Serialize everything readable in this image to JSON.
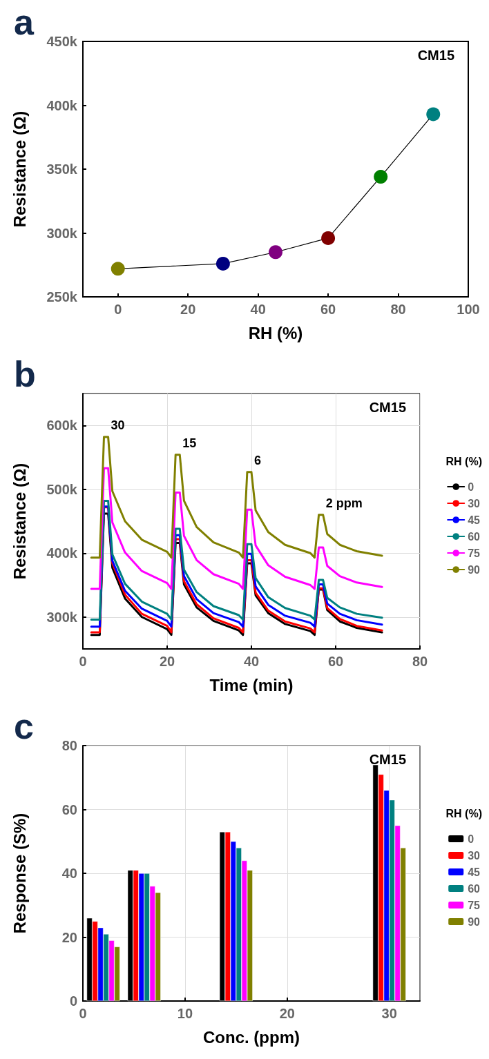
{
  "chart_data": [
    {
      "type": "line",
      "xlabel": "RH (%)",
      "ylabel": "Resistance (Ω)",
      "annotations": [
        "a",
        "CM15"
      ],
      "x": [
        0,
        30,
        45,
        60,
        75,
        90
      ],
      "series": [
        {
          "color": "#000000",
          "colors": [
            "#808000",
            "#000080",
            "#800080",
            "#800000",
            "#008000",
            "#008080"
          ],
          "values": [
            272000,
            276000,
            285000,
            296000,
            344000,
            393000
          ]
        }
      ],
      "marker": "circle",
      "grid": false,
      "xlim": [
        -10,
        100
      ],
      "xticks": [
        0,
        20,
        40,
        60,
        80,
        100
      ],
      "ylim": [
        250000,
        450000
      ],
      "yticks": [
        {
          "value": 250000,
          "label": "250k"
        },
        {
          "value": 300000,
          "label": "300k"
        },
        {
          "value": 350000,
          "label": "350k"
        },
        {
          "value": 400000,
          "label": "400k"
        },
        {
          "value": 450000,
          "label": "450k"
        }
      ]
    },
    {
      "type": "line",
      "xlabel": "Time (min)",
      "ylabel": "Resistance (Ω)",
      "legend_title": "RH (%)",
      "legend": "right",
      "annotations": [
        "b",
        "CM15",
        {
          "text": "30",
          "x": 6,
          "y": 582000
        },
        {
          "text": "15",
          "x": 23,
          "y": 554000
        },
        {
          "text": "6",
          "x": 40,
          "y": 527000
        },
        {
          "text": "2 ppm",
          "x": 57,
          "y": 460000
        }
      ],
      "x": [
        2,
        4,
        5,
        6,
        7,
        10,
        14,
        20,
        21,
        22,
        23,
        24,
        27,
        31,
        37,
        38,
        39,
        40,
        41,
        44,
        48,
        54,
        55,
        56,
        57,
        58,
        61,
        65,
        71
      ],
      "series": [
        {
          "name": "0",
          "color": "#000000",
          "values": [
            272000,
            272000,
            462000,
            462000,
            377000,
            329000,
            300000,
            281000,
            272000,
            416000,
            416000,
            351000,
            315000,
            294000,
            279000,
            272000,
            384000,
            384000,
            334000,
            306000,
            289000,
            278000,
            272000,
            343000,
            343000,
            311000,
            293000,
            283000,
            276000
          ]
        },
        {
          "name": "30",
          "color": "#ff0000",
          "values": [
            276000,
            276000,
            472000,
            472000,
            384000,
            335000,
            305000,
            286000,
            276000,
            422000,
            422000,
            356000,
            320000,
            298000,
            283000,
            276000,
            389000,
            389000,
            338000,
            310000,
            293000,
            282000,
            276000,
            345000,
            345000,
            314000,
            297000,
            286000,
            279000
          ]
        },
        {
          "name": "45",
          "color": "#0000ff",
          "values": [
            285000,
            285000,
            473000,
            473000,
            388000,
            341000,
            313000,
            294000,
            285000,
            428000,
            428000,
            364000,
            328000,
            306000,
            292000,
            285000,
            399000,
            399000,
            348000,
            319000,
            302000,
            291000,
            285000,
            351000,
            351000,
            321000,
            305000,
            295000,
            288000
          ]
        },
        {
          "name": "60",
          "color": "#008080",
          "values": [
            296000,
            296000,
            482000,
            482000,
            398000,
            352000,
            324000,
            305000,
            296000,
            438000,
            438000,
            374000,
            339000,
            317000,
            303000,
            296000,
            414000,
            414000,
            361000,
            331000,
            314000,
            302000,
            296000,
            358000,
            358000,
            330000,
            315000,
            305000,
            299000
          ]
        },
        {
          "name": "75",
          "color": "#ff00ff",
          "values": [
            344000,
            344000,
            533000,
            533000,
            448000,
            401000,
            372000,
            353000,
            344000,
            495000,
            495000,
            427000,
            389000,
            367000,
            352000,
            344000,
            468000,
            468000,
            412000,
            381000,
            363000,
            350000,
            344000,
            409000,
            409000,
            380000,
            364000,
            354000,
            347000
          ]
        },
        {
          "name": "90",
          "color": "#808000",
          "values": [
            393000,
            393000,
            582000,
            582000,
            497000,
            450000,
            421000,
            402000,
            393000,
            554000,
            554000,
            482000,
            441000,
            417000,
            401000,
            393000,
            527000,
            527000,
            467000,
            433000,
            413000,
            400000,
            393000,
            460000,
            460000,
            430000,
            413000,
            403000,
            396000
          ]
        }
      ],
      "marker": "none",
      "grid": true,
      "xlim": [
        0,
        80
      ],
      "xticks": [
        0,
        20,
        40,
        60,
        80
      ],
      "ylim": [
        250000,
        650000
      ],
      "yticks": [
        {
          "value": 300000,
          "label": "300k"
        },
        {
          "value": 400000,
          "label": "400k"
        },
        {
          "value": 500000,
          "label": "500k"
        },
        {
          "value": 600000,
          "label": "600k"
        }
      ]
    },
    {
      "type": "bar",
      "xlabel": "Conc. (ppm)",
      "ylabel": "Response (S%)",
      "legend_title": "RH (%)",
      "legend": "right",
      "annotations": [
        "c",
        "CM15"
      ],
      "x": [
        2,
        6,
        15,
        30
      ],
      "series": [
        {
          "name": "0",
          "color": "#000000",
          "values": [
            26,
            41,
            53,
            74
          ]
        },
        {
          "name": "30",
          "color": "#ff0000",
          "values": [
            25,
            41,
            53,
            71
          ]
        },
        {
          "name": "45",
          "color": "#0000ff",
          "values": [
            23,
            40,
            50,
            66
          ]
        },
        {
          "name": "60",
          "color": "#008080",
          "values": [
            21,
            40,
            48,
            63
          ]
        },
        {
          "name": "75",
          "color": "#ff00ff",
          "values": [
            19,
            36,
            44,
            55
          ]
        },
        {
          "name": "90",
          "color": "#808000",
          "values": [
            17,
            34,
            41,
            48
          ]
        }
      ],
      "grid": true,
      "xlim": [
        0,
        33
      ],
      "xticks": [
        0,
        10,
        20,
        30
      ],
      "ylim": [
        0,
        80
      ],
      "yticks": [
        0,
        20,
        40,
        60,
        80
      ]
    }
  ]
}
